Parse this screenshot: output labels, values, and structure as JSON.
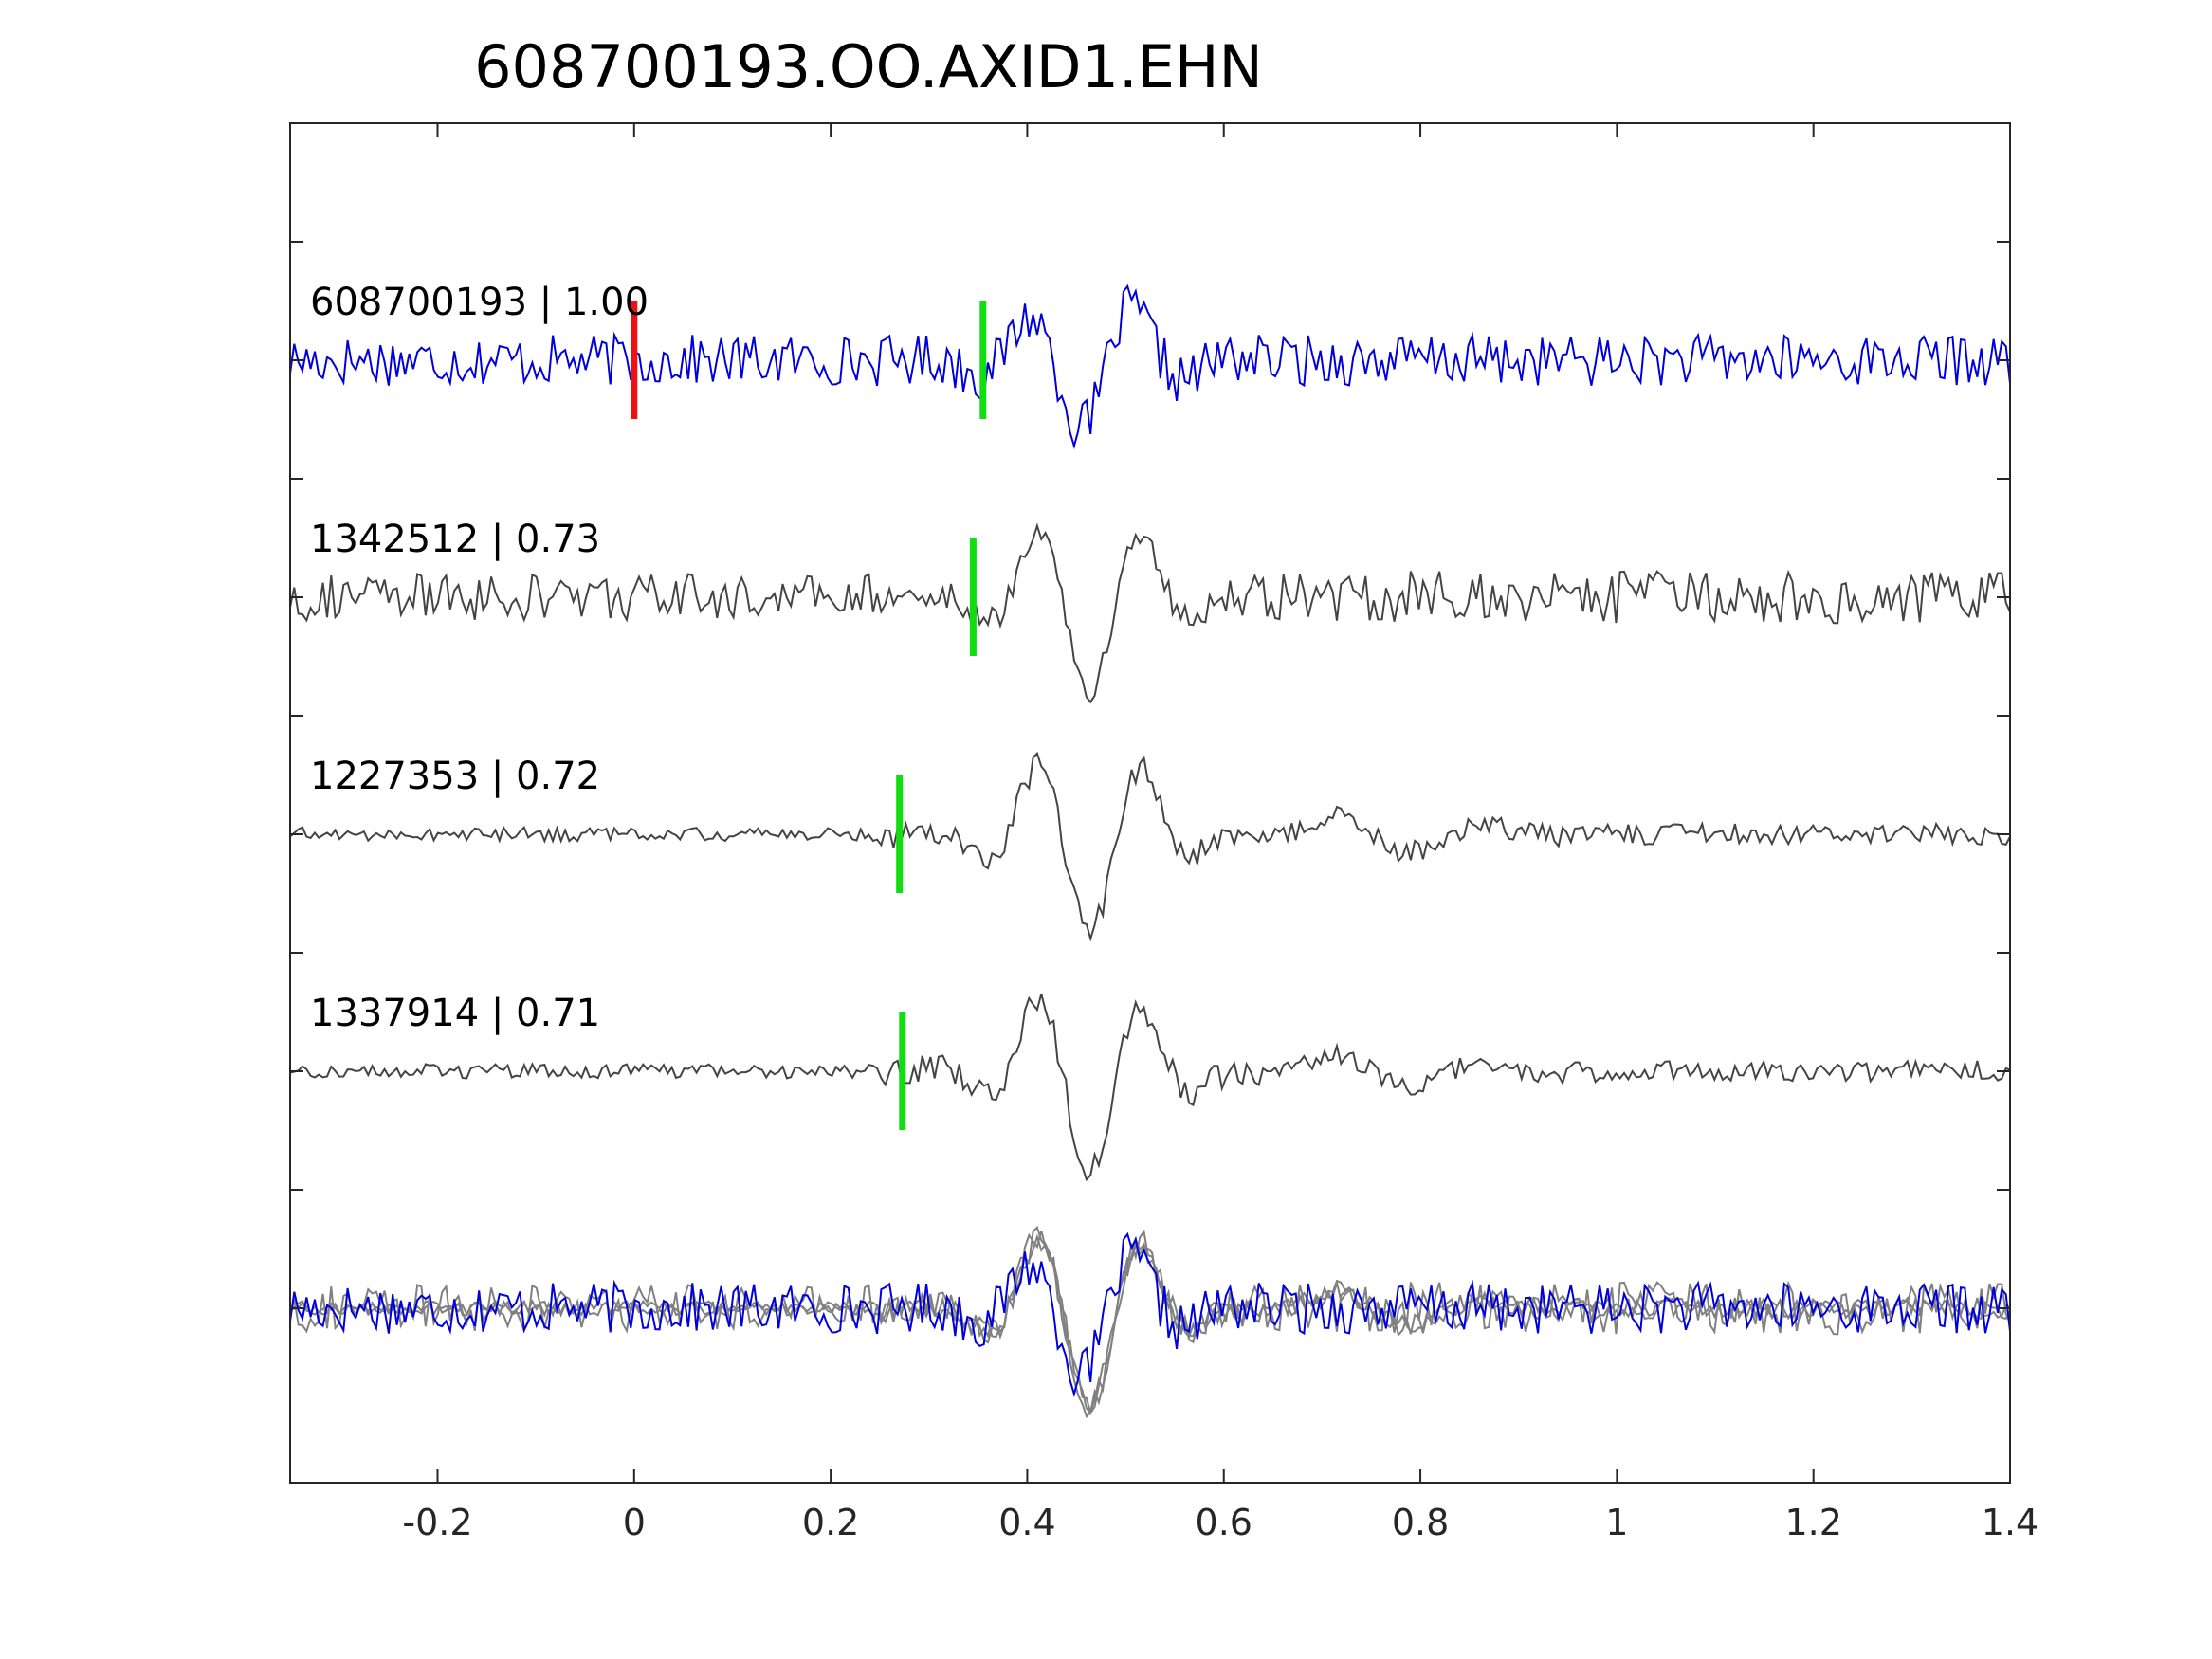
{
  "chart_data": {
    "type": "line",
    "title": "608700193.OO.AXID1.EHN",
    "xlabel": "",
    "ylabel": "",
    "xlim": [
      -0.35,
      1.4
    ],
    "x_ticks": [
      -0.2,
      0,
      0.2,
      0.4,
      0.6,
      0.8,
      1,
      1.2,
      1.4
    ],
    "x_tick_labels": [
      "-0.2",
      "0",
      "0.2",
      "0.4",
      "0.6",
      "0.8",
      "1",
      "1.2",
      "1.4"
    ],
    "grid": false,
    "legend": false,
    "colors": {
      "primary_trace": "#0000dd",
      "match_trace": "#444444",
      "overlay_match": "#808080",
      "origin_pick": "#ee1111",
      "phase_pick": "#11dd11",
      "axes": "#262626"
    },
    "traces": [
      {
        "label": "608700193 | 1.00",
        "event_id": "608700193",
        "correlation": 1.0,
        "color": "blue",
        "picks": [
          {
            "time": 0.0,
            "color": "red"
          },
          {
            "time": 0.355,
            "color": "green"
          }
        ]
      },
      {
        "label": "1342512 | 0.73",
        "event_id": "1342512",
        "correlation": 0.73,
        "color": "dark-gray",
        "picks": [
          {
            "time": 0.345,
            "color": "green"
          }
        ]
      },
      {
        "label": "1227353 | 0.72",
        "event_id": "1227353",
        "correlation": 0.72,
        "color": "dark-gray",
        "picks": [
          {
            "time": 0.27,
            "color": "green"
          }
        ]
      },
      {
        "label": "1337914 | 0.71",
        "event_id": "1337914",
        "correlation": 0.71,
        "color": "dark-gray",
        "picks": [
          {
            "time": 0.273,
            "color": "green"
          }
        ]
      }
    ],
    "bottom_panel": "overlay of all traces aligned"
  }
}
